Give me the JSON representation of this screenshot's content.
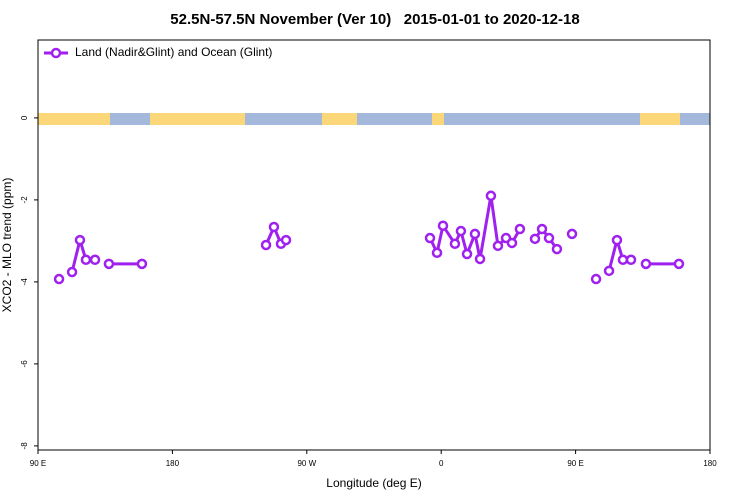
{
  "chart_data": {
    "type": "line",
    "title": "52.5N-57.5N November (Ver 10)   2015-01-01 to 2020-12-18",
    "x_label": "Longitude (deg E)",
    "y_label": "XCO2 - MLO trend (ppm)",
    "legend": "top-left",
    "xlim": [
      90,
      540
    ],
    "ylim": [
      -8.1,
      1.9
    ],
    "xticks": [
      {
        "value": 90,
        "label": "90 E"
      },
      180,
      {
        "value": 270,
        "label": "90 W"
      },
      {
        "value": 360,
        "label": "0"
      },
      {
        "value": 450,
        "label": "90 E"
      },
      {
        "value": 540,
        "label": "180"
      }
    ],
    "yticks": [
      0,
      -2,
      -4,
      -6,
      -8
    ],
    "x": [
      104.1,
      null,
      112.8,
      118.1,
      122.1,
      128.2,
      null,
      137.5,
      159.6,
      null,
      242.7,
      248.0,
      252.7,
      256.1,
      null,
      352.5,
      357.2,
      361.2,
      369.2,
      373.2,
      377.3,
      382.6,
      386.0,
      393.3,
      398.0,
      403.4,
      407.4,
      412.7,
      null,
      422.8,
      427.5,
      432.2,
      437.5,
      null,
      447.6,
      null,
      463.7,
      null,
      472.4,
      477.7,
      481.7,
      487.1,
      null,
      497.1,
      519.2
    ],
    "series": [
      {
        "name": "Land (Nadir&Glint) and Ocean (Glint)",
        "color": "#a020f0",
        "values": [
          -3.93,
          null,
          -3.76,
          -2.98,
          -3.46,
          -3.46,
          null,
          -3.56,
          -3.56,
          null,
          -3.1,
          -2.66,
          -3.07,
          -2.98,
          null,
          -2.93,
          -3.29,
          -2.63,
          -3.07,
          -2.76,
          -3.32,
          -2.83,
          -3.44,
          -1.9,
          -3.12,
          -2.93,
          -3.05,
          -2.71,
          null,
          -2.95,
          -2.71,
          -2.93,
          -3.2,
          null,
          -2.83,
          null,
          -3.93,
          null,
          -3.73,
          -2.98,
          -3.46,
          -3.46,
          null,
          -3.56,
          -3.56
        ]
      }
    ]
  }
}
